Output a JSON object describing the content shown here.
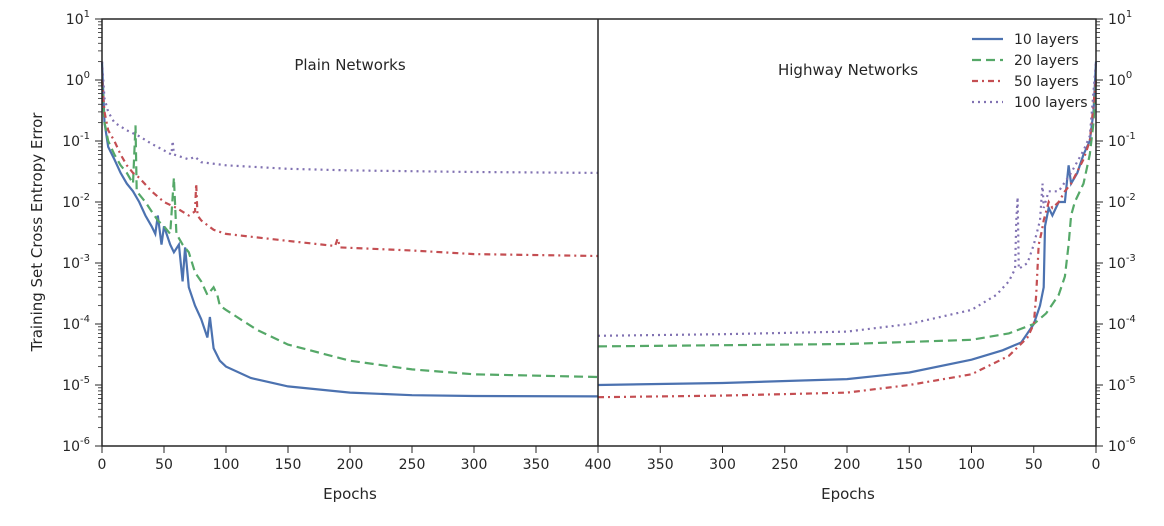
{
  "chart_data": {
    "type": "line",
    "ylabel": "Training Set Cross Entropy Error",
    "yscale": "log",
    "ylim": [
      1e-06,
      10
    ],
    "ytick_exponents": [
      "1",
      "0",
      "-1",
      "-2",
      "-3",
      "-4",
      "-5",
      "-6"
    ],
    "ytick_base": "10",
    "grid": false,
    "legend_placement": "top-right",
    "legend": [
      "10 layers",
      "20 layers",
      "50 layers",
      "100 layers"
    ],
    "colors": [
      "#4C72B0",
      "#55A868",
      "#C44E52",
      "#8172B2"
    ],
    "styles": [
      "solid",
      "dashed",
      "dashdot",
      "dotted"
    ],
    "panels": [
      {
        "title": "Plain Networks",
        "xlabel": "Epochs",
        "xlim": [
          0,
          400
        ],
        "xticks": [
          "0",
          "50",
          "100",
          "150",
          "200",
          "250",
          "300",
          "350",
          "400"
        ],
        "series": [
          {
            "name": "10 layers",
            "x": [
              0,
              2,
              5,
              10,
              15,
              20,
              25,
              30,
              35,
              40,
              43,
              45,
              48,
              50,
              55,
              58,
              62,
              65,
              67,
              70,
              75,
              80,
              85,
              87,
              90,
              95,
              100,
              120,
              150,
              200,
              250,
              300,
              400
            ],
            "y": [
              2,
              0.2,
              0.08,
              0.05,
              0.03,
              0.02,
              0.015,
              0.01,
              0.006,
              0.004,
              0.003,
              0.006,
              0.002,
              0.004,
              0.002,
              0.0015,
              0.002,
              0.0005,
              0.0018,
              0.0004,
              0.0002,
              0.00012,
              6e-05,
              0.00013,
              4e-05,
              2.5e-05,
              2e-05,
              1.3e-05,
              9.5e-06,
              7.5e-06,
              6.8e-06,
              6.6e-06,
              6.5e-06
            ]
          },
          {
            "name": "20 layers",
            "x": [
              0,
              2,
              5,
              10,
              15,
              20,
              25,
              27,
              28,
              35,
              40,
              45,
              50,
              55,
              58,
              60,
              65,
              70,
              75,
              80,
              85,
              90,
              93,
              95,
              100,
              125,
              150,
              200,
              250,
              300,
              400
            ],
            "y": [
              1,
              0.2,
              0.1,
              0.06,
              0.04,
              0.03,
              0.02,
              0.18,
              0.015,
              0.01,
              0.007,
              0.005,
              0.004,
              0.003,
              0.025,
              0.003,
              0.002,
              0.0015,
              0.0007,
              0.0005,
              0.0003,
              0.0004,
              0.0003,
              0.0002,
              0.00017,
              8e-05,
              4.6e-05,
              2.5e-05,
              1.8e-05,
              1.5e-05,
              1.35e-05
            ]
          },
          {
            "name": "50 layers",
            "x": [
              0,
              2,
              5,
              10,
              15,
              20,
              25,
              30,
              40,
              50,
              60,
              70,
              75,
              76,
              77,
              80,
              90,
              100,
              150,
              188,
              190,
              192,
              250,
              300,
              400
            ],
            "y": [
              1,
              0.3,
              0.15,
              0.1,
              0.06,
              0.04,
              0.03,
              0.025,
              0.015,
              0.01,
              0.008,
              0.006,
              0.007,
              0.02,
              0.006,
              0.005,
              0.0035,
              0.003,
              0.0023,
              0.0019,
              0.0025,
              0.0018,
              0.0016,
              0.0014,
              0.0013
            ]
          },
          {
            "name": "100 layers",
            "x": [
              0,
              2,
              5,
              10,
              20,
              30,
              40,
              50,
              56,
              57,
              58,
              70,
              75,
              80,
              100,
              150,
              200,
              300,
              400
            ],
            "y": [
              2,
              0.5,
              0.3,
              0.2,
              0.15,
              0.12,
              0.09,
              0.07,
              0.06,
              0.1,
              0.06,
              0.05,
              0.055,
              0.045,
              0.04,
              0.035,
              0.033,
              0.031,
              0.03
            ]
          }
        ]
      },
      {
        "title": "Highway Networks",
        "xlabel": "Epochs",
        "xlim": [
          400,
          0
        ],
        "xticks": [
          "400",
          "350",
          "300",
          "250",
          "200",
          "150",
          "100",
          "50",
          "0"
        ],
        "series": [
          {
            "name": "10 layers",
            "x": [
              400,
              300,
              200,
              150,
              100,
              75,
              60,
              50,
              45,
              42,
              41,
              38,
              35,
              30,
              25,
              22,
              20,
              15,
              10,
              5,
              2,
              0
            ],
            "y": [
              1e-05,
              1.08e-05,
              1.25e-05,
              1.6e-05,
              2.6e-05,
              3.7e-05,
              5e-05,
              0.0001,
              0.0002,
              0.0004,
              0.004,
              0.008,
              0.006,
              0.01,
              0.01,
              0.04,
              0.02,
              0.03,
              0.06,
              0.1,
              0.3,
              2
            ]
          },
          {
            "name": "20 layers",
            "x": [
              400,
              200,
              100,
              70,
              50,
              40,
              30,
              25,
              22,
              20,
              17,
              10,
              5,
              2,
              0
            ],
            "y": [
              4.3e-05,
              4.7e-05,
              5.5e-05,
              7e-05,
              0.0001,
              0.00015,
              0.0003,
              0.0006,
              0.002,
              0.006,
              0.01,
              0.02,
              0.06,
              0.2,
              1
            ]
          },
          {
            "name": "50 layers",
            "x": [
              400,
              300,
              200,
              150,
              100,
              70,
              55,
              50,
              48,
              46,
              44,
              42,
              38,
              35,
              30,
              25,
              20,
              10,
              5,
              0
            ],
            "y": [
              6.3e-06,
              6.7e-06,
              7.5e-06,
              1e-05,
              1.5e-05,
              3e-05,
              6e-05,
              0.0001,
              0.0003,
              0.002,
              0.003,
              0.005,
              0.01,
              0.008,
              0.01,
              0.015,
              0.02,
              0.05,
              0.1,
              1
            ]
          },
          {
            "name": "100 layers",
            "x": [
              400,
              300,
              200,
              150,
              100,
              80,
              70,
              65,
              64,
              63,
              62,
              55,
              50,
              45,
              43,
              42,
              38,
              30,
              20,
              10,
              5,
              0
            ],
            "y": [
              6.4e-05,
              6.8e-05,
              7.5e-05,
              0.0001,
              0.00017,
              0.0003,
              0.0005,
              0.0008,
              0.005,
              0.012,
              0.0008,
              0.001,
              0.002,
              0.005,
              0.02,
              0.008,
              0.015,
              0.015,
              0.03,
              0.07,
              0.12,
              2
            ]
          }
        ]
      }
    ]
  }
}
